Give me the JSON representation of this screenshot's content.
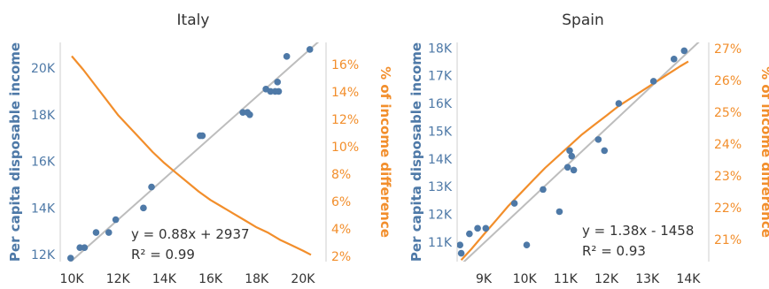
{
  "colors": {
    "points": "#4e79a7",
    "curve": "#f28e2b",
    "fit_line": "#bdbdbd",
    "axis_line": "#cfcfcf",
    "text": "#333333",
    "left_label": "#4e79a7",
    "right_label": "#f28e2b"
  },
  "chart_data": [
    {
      "type": "scatter",
      "title": "Italy",
      "ylabel": "Per capita disposable income",
      "y2label": "% of income difference",
      "xlim": [
        9500,
        21000
      ],
      "ylim": [
        11700,
        21100
      ],
      "y2lim": [
        1.6,
        17.6
      ],
      "x_ticks": [
        10000,
        12000,
        14000,
        16000,
        18000,
        20000
      ],
      "x_tick_labels": [
        "10K",
        "12K",
        "14K",
        "16K",
        "18K",
        "20K"
      ],
      "y_ticks": [
        12000,
        14000,
        16000,
        18000,
        20000
      ],
      "y_tick_labels": [
        "12K",
        "14K",
        "16K",
        "18K",
        "20K"
      ],
      "y2_ticks": [
        2,
        4,
        6,
        8,
        10,
        12,
        14,
        16
      ],
      "y2_tick_labels": [
        "2%",
        "4%",
        "6%",
        "8%",
        "10%",
        "12%",
        "14%",
        "16%"
      ],
      "points": [
        [
          9950,
          11850
        ],
        [
          10350,
          12300
        ],
        [
          10550,
          12300
        ],
        [
          11050,
          12950
        ],
        [
          11600,
          12950
        ],
        [
          11900,
          13500
        ],
        [
          13100,
          14000
        ],
        [
          13450,
          14900
        ],
        [
          15550,
          17100
        ],
        [
          15650,
          17100
        ],
        [
          17400,
          18100
        ],
        [
          17600,
          18100
        ],
        [
          17700,
          18000
        ],
        [
          18400,
          19100
        ],
        [
          18600,
          19000
        ],
        [
          18800,
          19000
        ],
        [
          18900,
          19400
        ],
        [
          18950,
          19000
        ],
        [
          19300,
          20500
        ],
        [
          20300,
          20800
        ]
      ],
      "fit": {
        "slope": 0.88,
        "intercept": 2937,
        "x_range": [
          9500,
          21000
        ]
      },
      "equation": "y = 0.88x + 2937",
      "r_squared": "R² = 0.99",
      "curve": [
        [
          10000,
          16.6
        ],
        [
          10500,
          15.6
        ],
        [
          11000,
          14.5
        ],
        [
          11500,
          13.4
        ],
        [
          12000,
          12.3
        ],
        [
          12500,
          11.4
        ],
        [
          13000,
          10.5
        ],
        [
          13500,
          9.6
        ],
        [
          14000,
          8.8
        ],
        [
          14500,
          8.1
        ],
        [
          15000,
          7.4
        ],
        [
          15500,
          6.7
        ],
        [
          16000,
          6.1
        ],
        [
          16500,
          5.6
        ],
        [
          17000,
          5.1
        ],
        [
          17500,
          4.6
        ],
        [
          18000,
          4.1
        ],
        [
          18500,
          3.7
        ],
        [
          19000,
          3.2
        ],
        [
          19500,
          2.8
        ],
        [
          20000,
          2.4
        ],
        [
          20350,
          2.1
        ]
      ]
    },
    {
      "type": "scatter",
      "title": "Spain",
      "ylabel": "Per capita disposable income",
      "y2label": "% of income difference",
      "xlim": [
        8350,
        14500
      ],
      "ylim": [
        10300,
        18200
      ],
      "y2lim": [
        20.3,
        27.2
      ],
      "x_ticks": [
        9000,
        10000,
        11000,
        12000,
        13000,
        14000
      ],
      "x_tick_labels": [
        "9K",
        "10K",
        "11K",
        "12K",
        "13K",
        "14K"
      ],
      "y_ticks": [
        11000,
        12000,
        13000,
        14000,
        15000,
        16000,
        17000,
        18000
      ],
      "y_tick_labels": [
        "11K",
        "12K",
        "13K",
        "14K",
        "15K",
        "16K",
        "17K",
        "18K"
      ],
      "y2_ticks": [
        21,
        22,
        23,
        24,
        25,
        26,
        27
      ],
      "y2_tick_labels": [
        "21%",
        "22%",
        "23%",
        "24%",
        "25%",
        "26%",
        "27%"
      ],
      "points": [
        [
          8420,
          10900
        ],
        [
          8450,
          10600
        ],
        [
          8650,
          11300
        ],
        [
          8850,
          11500
        ],
        [
          9050,
          11500
        ],
        [
          9750,
          12400
        ],
        [
          10050,
          10900
        ],
        [
          10450,
          12900
        ],
        [
          10850,
          12100
        ],
        [
          11050,
          13700
        ],
        [
          11100,
          14300
        ],
        [
          11150,
          14100
        ],
        [
          11200,
          13600
        ],
        [
          11800,
          14700
        ],
        [
          11950,
          14300
        ],
        [
          12300,
          16000
        ],
        [
          13150,
          16800
        ],
        [
          13650,
          17600
        ],
        [
          13900,
          17900
        ]
      ],
      "fit": {
        "slope": 1.38,
        "intercept": -1458,
        "x_range": [
          8400,
          14400
        ]
      },
      "equation": "y = 1.38x - 1458",
      "r_squared": "R² = 0.93",
      "curve": [
        [
          8450,
          20.35
        ],
        [
          8700,
          20.7
        ],
        [
          9000,
          21.15
        ],
        [
          9300,
          21.6
        ],
        [
          9600,
          22.05
        ],
        [
          9900,
          22.45
        ],
        [
          10200,
          22.85
        ],
        [
          10500,
          23.25
        ],
        [
          10800,
          23.6
        ],
        [
          11100,
          23.95
        ],
        [
          11400,
          24.3
        ],
        [
          11700,
          24.6
        ],
        [
          12000,
          24.9
        ],
        [
          12300,
          25.2
        ],
        [
          12600,
          25.45
        ],
        [
          12900,
          25.7
        ],
        [
          13200,
          25.95
        ],
        [
          13500,
          26.2
        ],
        [
          13800,
          26.45
        ],
        [
          14000,
          26.6
        ]
      ]
    }
  ]
}
